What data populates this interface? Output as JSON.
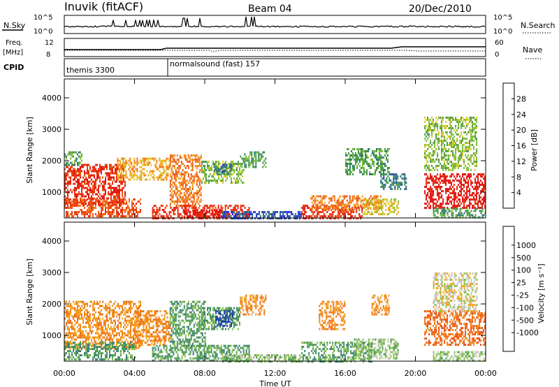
{
  "header": {
    "station": "Inuvik (fitACF)",
    "beam": "Beam 04",
    "date": "20/Dec/2010"
  },
  "noise_panel": {
    "left_label": "N.Sky",
    "right_label": "N.Search",
    "left_ticks": [
      "10^5",
      "10^0"
    ],
    "right_ticks": [
      "10^5",
      "10^0"
    ]
  },
  "freq_panel": {
    "label_top": "Freq.",
    "label_bottom": "[MHz]",
    "right_label": "Nave",
    "left_ticks": [
      "12",
      "8"
    ],
    "right_ticks": [
      "60",
      "0"
    ]
  },
  "cpid_panel": {
    "label": "CPID",
    "programs": [
      {
        "name": "themis 3300",
        "start_hour": 0
      },
      {
        "name": "normalsound (fast) 157",
        "start_hour": 6
      }
    ]
  },
  "chart_data": [
    {
      "type": "heatmap",
      "panel": "power",
      "ylabel": "Slant Range [km]",
      "xlabel": "Time UT",
      "x_ticks": [
        "00:00",
        "04:00",
        "08:00",
        "12:00",
        "16:00",
        "20:00",
        "00:00"
      ],
      "xlim_hours": [
        0,
        24
      ],
      "y_ticks": [
        1000,
        2000,
        3000,
        4000
      ],
      "ylim": [
        180,
        4600
      ],
      "colorbar": {
        "label": "Power [dB]",
        "ticks": [
          "4",
          "8",
          "12",
          "16",
          "20",
          "24",
          "28"
        ],
        "colors": [
          "#1a2cf0",
          "#2d4aa8",
          "#2f7a78",
          "#4a9a4c",
          "#7fbd3a",
          "#d9cb2a",
          "#f4a020",
          "#f07818",
          "#ee5010",
          "#e82a0c",
          "#e0100a"
        ]
      },
      "regions": [
        {
          "t0": 0.0,
          "t1": 3.5,
          "r0": 600,
          "r1": 1900,
          "c": 9
        },
        {
          "t0": 0.0,
          "t1": 4.3,
          "r0": 250,
          "r1": 800,
          "c": 8
        },
        {
          "t0": 3.0,
          "t1": 6.0,
          "r0": 1400,
          "r1": 2100,
          "c": 6
        },
        {
          "t0": 0.0,
          "t1": 1.0,
          "r0": 1900,
          "r1": 2300,
          "c": 3
        },
        {
          "t0": 6.0,
          "t1": 7.8,
          "r0": 600,
          "r1": 2200,
          "c": 7
        },
        {
          "t0": 5.0,
          "t1": 10.5,
          "r0": 200,
          "r1": 600,
          "c": 9
        },
        {
          "t0": 6.8,
          "t1": 9.0,
          "r0": 200,
          "r1": 450,
          "c": 10
        },
        {
          "t0": 7.8,
          "t1": 10.2,
          "r0": 1300,
          "r1": 2000,
          "c": 4
        },
        {
          "t0": 8.5,
          "t1": 9.5,
          "r0": 1600,
          "r1": 1900,
          "c": 2
        },
        {
          "t0": 10.0,
          "t1": 11.5,
          "r0": 1800,
          "r1": 2300,
          "c": 3
        },
        {
          "t0": 9.0,
          "t1": 13.5,
          "r0": 200,
          "r1": 400,
          "c": 1
        },
        {
          "t0": 13.5,
          "t1": 17.0,
          "r0": 200,
          "r1": 600,
          "c": 9
        },
        {
          "t0": 14.0,
          "t1": 18.0,
          "r0": 500,
          "r1": 900,
          "c": 7
        },
        {
          "t0": 17.0,
          "t1": 19.0,
          "r0": 300,
          "r1": 800,
          "c": 5
        },
        {
          "t0": 16.0,
          "t1": 18.5,
          "r0": 1600,
          "r1": 2400,
          "c": 3
        },
        {
          "t0": 18.0,
          "t1": 19.5,
          "r0": 1100,
          "r1": 1600,
          "c": 2
        },
        {
          "t0": 20.5,
          "t1": 24.0,
          "r0": 500,
          "r1": 1600,
          "c": 10
        },
        {
          "t0": 20.5,
          "t1": 23.5,
          "r0": 1700,
          "r1": 3400,
          "c": 4
        },
        {
          "t0": 21.0,
          "t1": 24.0,
          "r0": 200,
          "r1": 500,
          "c": 3
        }
      ]
    },
    {
      "type": "heatmap",
      "panel": "velocity",
      "ylabel": "Slant Range [km]",
      "xlabel": "Time UT",
      "x_ticks": [
        "00:00",
        "04:00",
        "08:00",
        "12:00",
        "16:00",
        "20:00",
        "00:00"
      ],
      "xlim_hours": [
        0,
        24
      ],
      "y_ticks": [
        1000,
        2000,
        3000,
        4000
      ],
      "ylim": [
        180,
        4600
      ],
      "colorbar": {
        "label": "Velocity [m s⁻¹]",
        "ticks": [
          "1000",
          "500",
          "100",
          "25",
          "-25",
          "-100",
          "-500",
          "-1000"
        ],
        "colors": [
          "#1d3ea8",
          "#2b5fa0",
          "#3b7f7a",
          "#4c9a55",
          "#8ac250",
          "#c8c8c0",
          "#f4a81e",
          "#f28a1c",
          "#ef6f1a",
          "#ea4a14",
          "#e21a0e"
        ]
      },
      "regions": [
        {
          "t0": 0.0,
          "t1": 4.3,
          "r0": 600,
          "r1": 2100,
          "c": 7
        },
        {
          "t0": 0.0,
          "t1": 4.0,
          "r0": 250,
          "r1": 800,
          "c": 3
        },
        {
          "t0": 4.0,
          "t1": 6.0,
          "r0": 700,
          "r1": 1800,
          "c": 7
        },
        {
          "t0": 6.0,
          "t1": 8.0,
          "r0": 700,
          "r1": 2100,
          "c": 3
        },
        {
          "t0": 5.0,
          "t1": 10.5,
          "r0": 200,
          "r1": 700,
          "c": 3
        },
        {
          "t0": 7.8,
          "t1": 10.0,
          "r0": 1200,
          "r1": 1900,
          "c": 3
        },
        {
          "t0": 8.6,
          "t1": 9.6,
          "r0": 1300,
          "r1": 1800,
          "c": 0
        },
        {
          "t0": 10.0,
          "t1": 11.5,
          "r0": 1700,
          "r1": 2300,
          "c": 7
        },
        {
          "t0": 9.0,
          "t1": 13.5,
          "r0": 200,
          "r1": 400,
          "c": 4
        },
        {
          "t0": 13.5,
          "t1": 17.5,
          "r0": 200,
          "r1": 800,
          "c": 3
        },
        {
          "t0": 14.5,
          "t1": 16.0,
          "r0": 1200,
          "r1": 2100,
          "c": 7
        },
        {
          "t0": 16.5,
          "t1": 19.0,
          "r0": 300,
          "r1": 900,
          "c": 4
        },
        {
          "t0": 17.5,
          "t1": 18.5,
          "r0": 1700,
          "r1": 2300,
          "c": 7
        },
        {
          "t0": 20.5,
          "t1": 24.0,
          "r0": 700,
          "r1": 1800,
          "c": 8
        },
        {
          "t0": 21.0,
          "t1": 23.5,
          "r0": 1800,
          "r1": 3000,
          "c": 5
        },
        {
          "t0": 21.0,
          "t1": 24.0,
          "r0": 200,
          "r1": 500,
          "c": 4
        }
      ]
    }
  ]
}
